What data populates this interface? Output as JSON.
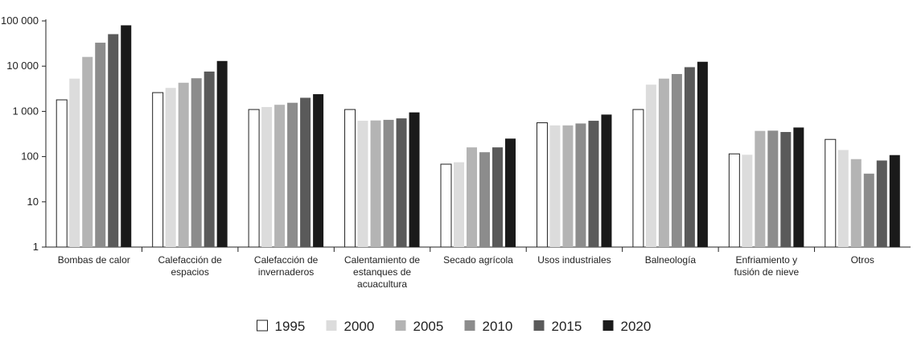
{
  "chart_data": {
    "type": "bar",
    "title": "",
    "xlabel": "",
    "ylabel": "",
    "yscale": "log",
    "ylim": [
      1,
      100000
    ],
    "grid": false,
    "legend_position": "bottom",
    "y_ticks": [
      {
        "value": 1,
        "label": "1"
      },
      {
        "value": 10,
        "label": "10"
      },
      {
        "value": 100,
        "label": "100"
      },
      {
        "value": 1000,
        "label": "1 000"
      },
      {
        "value": 10000,
        "label": "10 000"
      },
      {
        "value": 100000,
        "label": "100 000"
      }
    ],
    "categories": [
      [
        "Bombas de calor"
      ],
      [
        "Calefacción de",
        "espacios"
      ],
      [
        "Calefacción de",
        "invernaderos"
      ],
      [
        "Calentamiento de",
        "estanques de",
        "acuacultura"
      ],
      [
        "Secado agrícola"
      ],
      [
        "Usos industriales"
      ],
      [
        "Balneología"
      ],
      [
        "Enfriamiento y",
        "fusión de nieve"
      ],
      [
        "Otros"
      ]
    ],
    "series": [
      {
        "name": "1995",
        "color": "#ffffff",
        "values": [
          1800,
          2600,
          1100,
          1100,
          68,
          560,
          1100,
          115,
          240
        ]
      },
      {
        "name": "2000",
        "color": "#dcdcdc",
        "values": [
          5300,
          3300,
          1250,
          620,
          75,
          490,
          3900,
          110,
          140
        ]
      },
      {
        "name": "2005",
        "color": "#b4b4b4",
        "values": [
          16000,
          4300,
          1400,
          630,
          160,
          490,
          5300,
          370,
          88
        ]
      },
      {
        "name": "2010",
        "color": "#8c8c8c",
        "values": [
          33000,
          5400,
          1550,
          650,
          125,
          540,
          6700,
          375,
          42
        ]
      },
      {
        "name": "2015",
        "color": "#5a5a5a",
        "values": [
          51000,
          7600,
          2000,
          700,
          160,
          620,
          9500,
          350,
          82
        ]
      },
      {
        "name": "2020",
        "color": "#1a1a1a",
        "values": [
          80000,
          13000,
          2400,
          950,
          250,
          850,
          12500,
          440,
          108
        ]
      }
    ]
  }
}
